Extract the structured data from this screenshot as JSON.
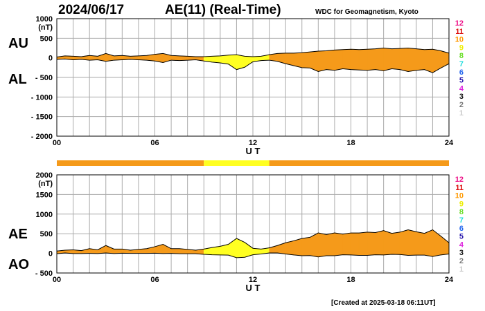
{
  "header": {
    "date": "2024/06/17",
    "title": "AE(11) (Real-Time)",
    "credit": "WDC for Geomagnetism, Kyoto",
    "created": "[Created at 2025-03-18 06:11UT]"
  },
  "colors": {
    "orange": "#f59a1a",
    "yellow": "#ffff22",
    "grid": "#aaaaaa"
  },
  "legend": [
    {
      "label": "12",
      "color": "#ee1188"
    },
    {
      "label": "11",
      "color": "#dd1111"
    },
    {
      "label": "10",
      "color": "#ff9900"
    },
    {
      "label": "9",
      "color": "#eeee00"
    },
    {
      "label": "8",
      "color": "#66dd22"
    },
    {
      "label": "7",
      "color": "#22dddd"
    },
    {
      "label": "6",
      "color": "#2266ee"
    },
    {
      "label": "5",
      "color": "#2211aa"
    },
    {
      "label": "4",
      "color": "#dd22dd"
    },
    {
      "label": "3",
      "color": "#111111"
    },
    {
      "label": "2",
      "color": "#777777"
    },
    {
      "label": "1",
      "color": "#cccccc"
    }
  ],
  "chart_data": [
    {
      "type": "area",
      "panel": "AU/AL",
      "series_labels": {
        "upper": "AU",
        "lower": "AL"
      },
      "ylabel": "(nT)",
      "xlabel": "U T",
      "xlim": [
        0,
        24
      ],
      "ylim": [
        -2000,
        1000
      ],
      "y_ticks": [
        1000,
        500,
        0,
        -500,
        -1000,
        -1500,
        -2000
      ],
      "y_tick_labels": [
        "1000",
        "500",
        "0",
        "- 500",
        "- 1000",
        "- 1500",
        "- 2000"
      ],
      "x_ticks": [
        0,
        6,
        12,
        18,
        24
      ],
      "x_tick_labels": [
        "00",
        "06",
        "12",
        "18",
        "24"
      ],
      "x": [
        0,
        0.5,
        1,
        1.5,
        2,
        2.5,
        3,
        3.5,
        4,
        4.5,
        5,
        5.5,
        6,
        6.5,
        7,
        7.5,
        8,
        8.5,
        9,
        9.5,
        10,
        10.5,
        11,
        11.5,
        12,
        12.5,
        13,
        13.5,
        14,
        14.5,
        15,
        15.5,
        16,
        16.5,
        17,
        17.5,
        18,
        18.5,
        19,
        19.5,
        20,
        20.5,
        21,
        21.5,
        22,
        22.5,
        23,
        23.5,
        24
      ],
      "au": [
        20,
        50,
        40,
        30,
        60,
        40,
        110,
        50,
        60,
        40,
        50,
        60,
        90,
        110,
        60,
        50,
        40,
        30,
        30,
        40,
        50,
        70,
        80,
        40,
        30,
        40,
        80,
        110,
        120,
        120,
        130,
        150,
        170,
        180,
        200,
        210,
        220,
        210,
        220,
        230,
        250,
        230,
        240,
        250,
        230,
        210,
        220,
        180,
        120
      ],
      "al": [
        -40,
        -30,
        -50,
        -40,
        -60,
        -50,
        -90,
        -60,
        -50,
        -40,
        -50,
        -60,
        -80,
        -120,
        -60,
        -70,
        -60,
        -50,
        -80,
        -110,
        -130,
        -160,
        -300,
        -240,
        -100,
        -70,
        -60,
        -90,
        -150,
        -200,
        -250,
        -260,
        -350,
        -300,
        -320,
        -280,
        -300,
        -310,
        -320,
        -300,
        -330,
        -280,
        -300,
        -350,
        -320,
        -300,
        -380,
        -260,
        -150
      ],
      "color_bar": [
        {
          "from": 0,
          "to": 9,
          "color": "orange"
        },
        {
          "from": 9,
          "to": 13,
          "color": "yellow"
        },
        {
          "from": 13,
          "to": 24,
          "color": "orange"
        }
      ]
    },
    {
      "type": "area",
      "panel": "AE/AO",
      "series_labels": {
        "upper": "AE",
        "lower": "AO"
      },
      "ylabel": "(nT)",
      "xlabel": "U T",
      "xlim": [
        0,
        24
      ],
      "ylim": [
        -500,
        2000
      ],
      "y_ticks": [
        2000,
        1500,
        1000,
        500,
        0,
        -500
      ],
      "y_tick_labels": [
        "2000",
        "1500",
        "1000",
        "500",
        "0",
        "- 500"
      ],
      "x_ticks": [
        0,
        6,
        12,
        18,
        24
      ],
      "x_tick_labels": [
        "00",
        "06",
        "12",
        "18",
        "24"
      ],
      "x": [
        0,
        0.5,
        1,
        1.5,
        2,
        2.5,
        3,
        3.5,
        4,
        4.5,
        5,
        5.5,
        6,
        6.5,
        7,
        7.5,
        8,
        8.5,
        9,
        9.5,
        10,
        10.5,
        11,
        11.5,
        12,
        12.5,
        13,
        13.5,
        14,
        14.5,
        15,
        15.5,
        16,
        16.5,
        17,
        17.5,
        18,
        18.5,
        19,
        19.5,
        20,
        20.5,
        21,
        21.5,
        22,
        22.5,
        23,
        23.5,
        24
      ],
      "ae": [
        60,
        80,
        90,
        70,
        120,
        90,
        200,
        110,
        110,
        80,
        100,
        120,
        170,
        230,
        120,
        120,
        100,
        80,
        110,
        150,
        180,
        230,
        380,
        280,
        130,
        110,
        140,
        200,
        270,
        320,
        380,
        410,
        520,
        480,
        520,
        490,
        520,
        520,
        540,
        530,
        580,
        510,
        540,
        600,
        550,
        510,
        600,
        440,
        270
      ],
      "ao": [
        -10,
        10,
        -5,
        -5,
        0,
        -5,
        10,
        -5,
        5,
        0,
        0,
        0,
        5,
        -5,
        0,
        -10,
        -10,
        -10,
        -25,
        -35,
        -40,
        -45,
        -110,
        -100,
        -35,
        -15,
        10,
        10,
        -15,
        -40,
        -60,
        -55,
        -90,
        -60,
        -60,
        -35,
        -40,
        -50,
        -50,
        -35,
        -40,
        -25,
        -30,
        -50,
        -45,
        -45,
        -80,
        -40,
        -15
      ]
    }
  ]
}
